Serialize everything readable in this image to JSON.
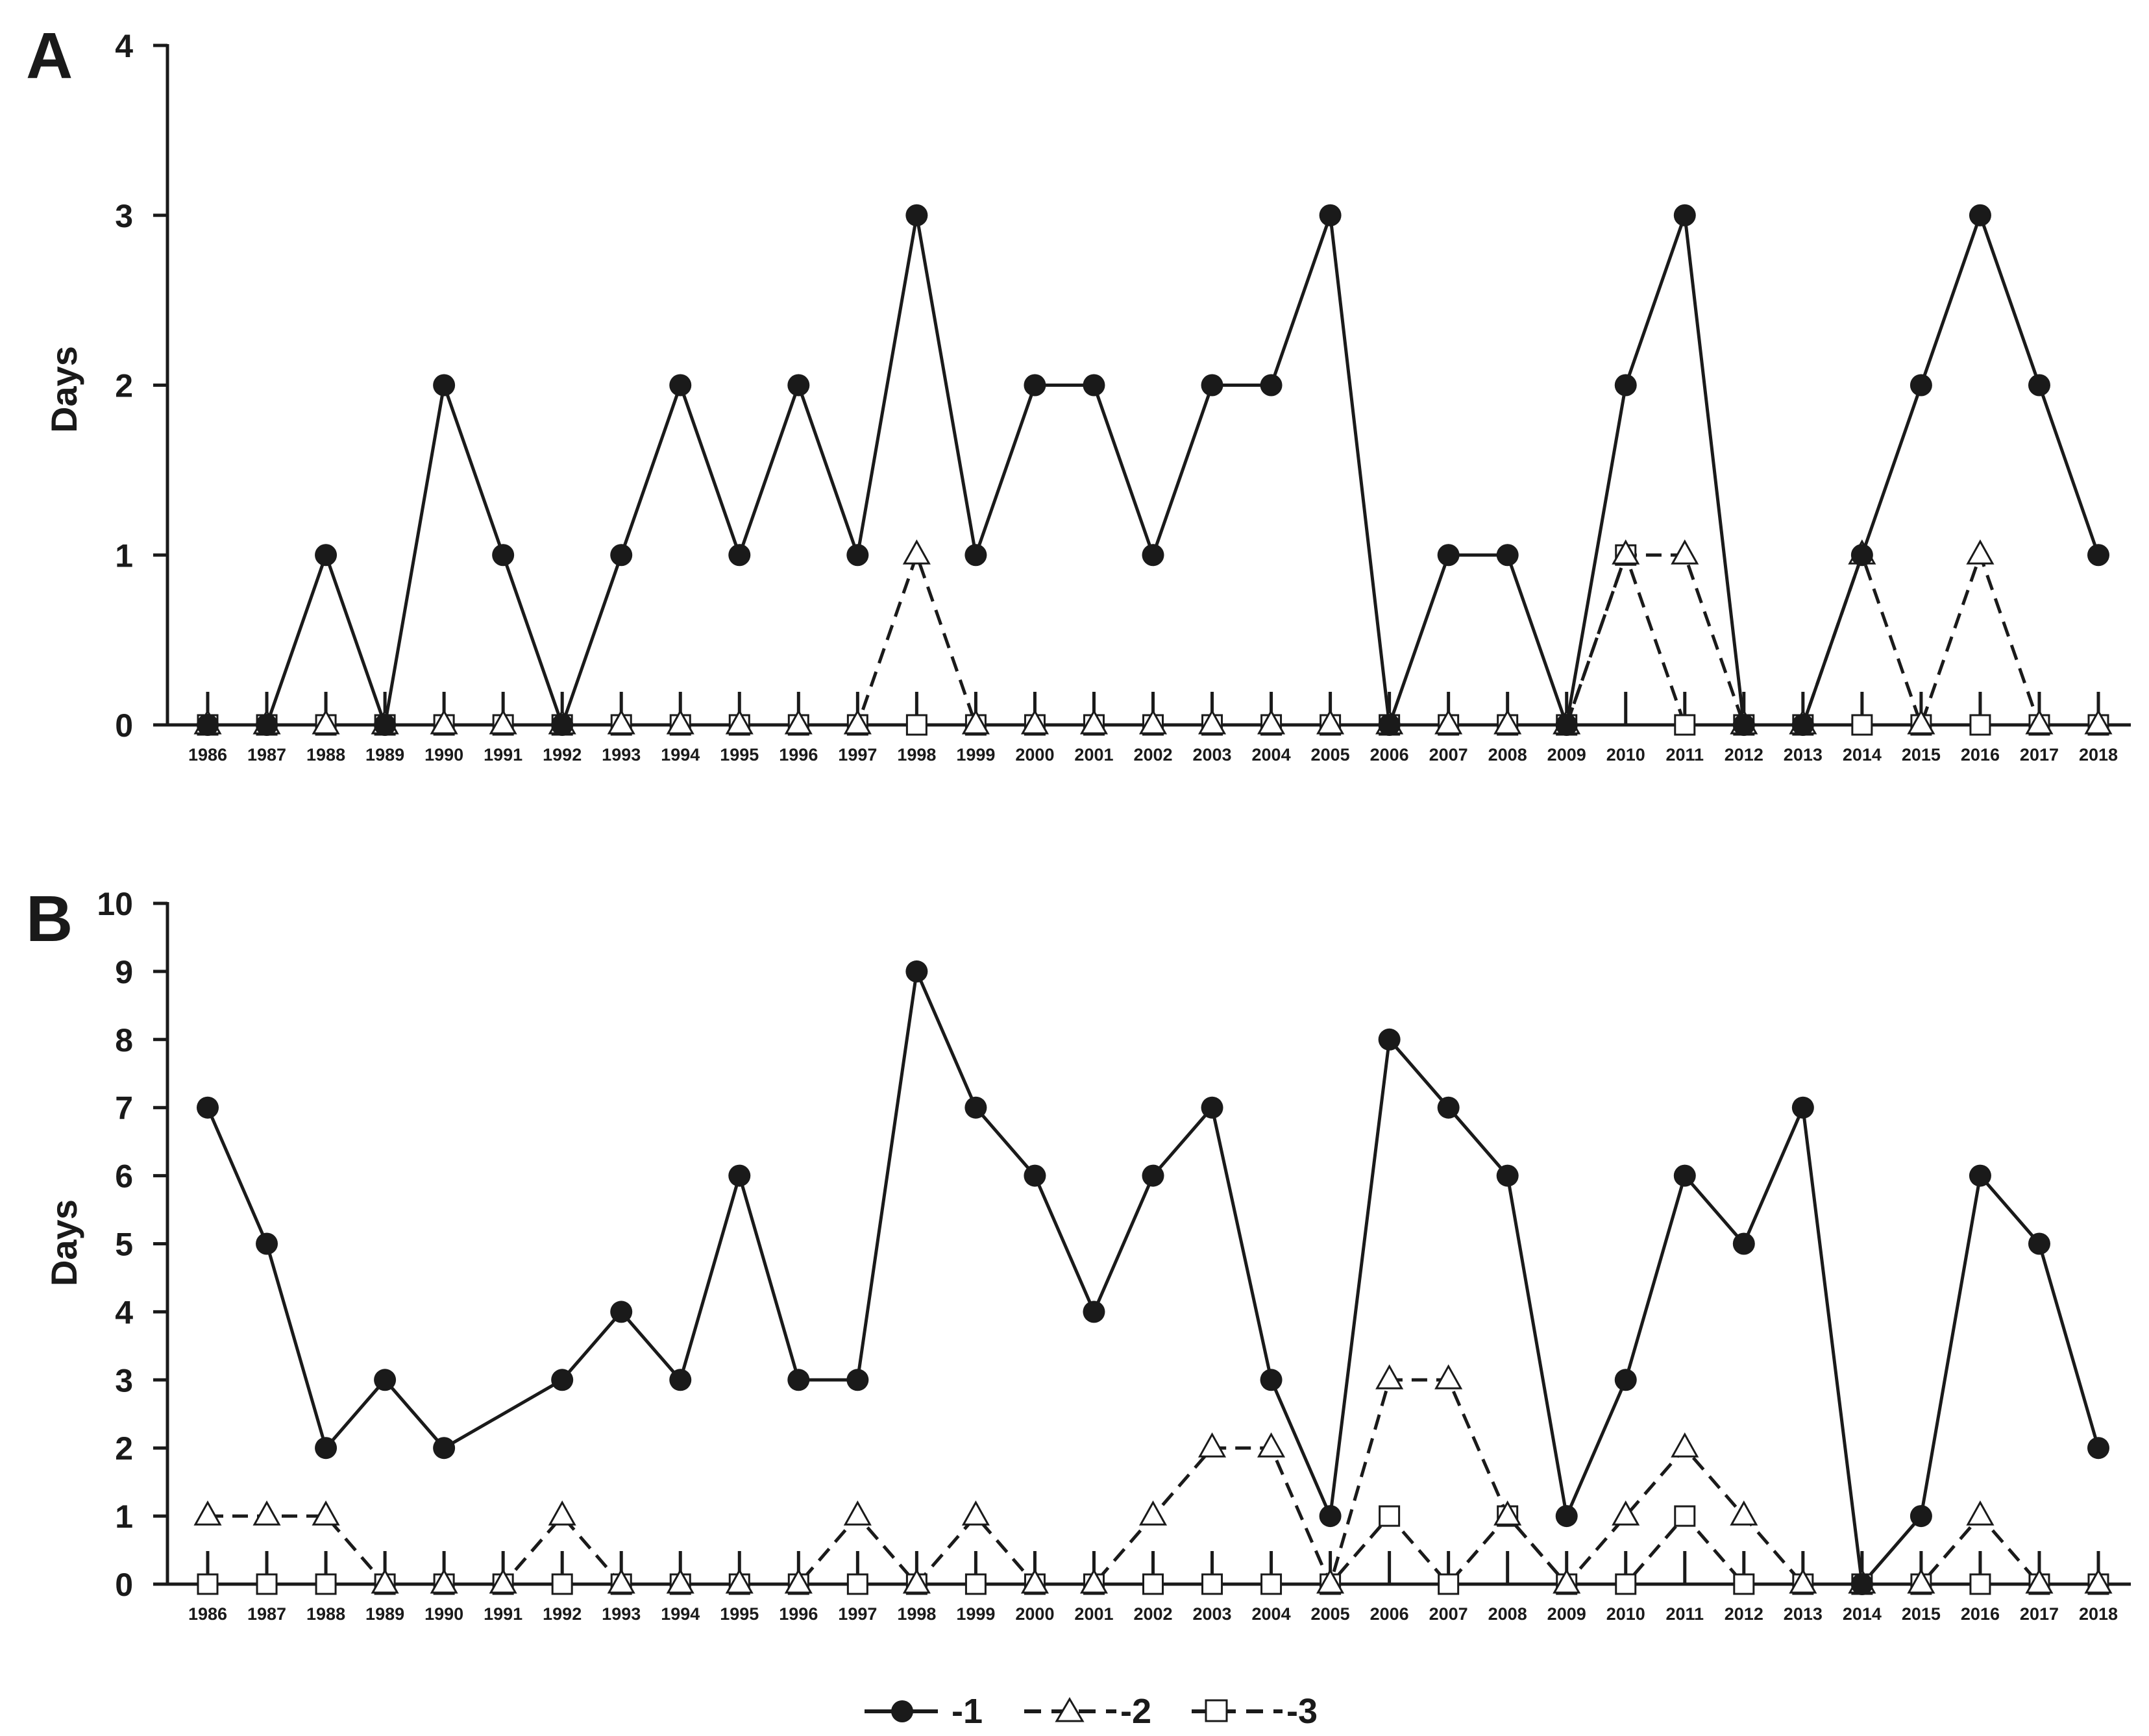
{
  "colors": {
    "ink": "#1a1a1a",
    "marker_fill_open": "#ffffff"
  },
  "chart_data": [
    {
      "panel": "A",
      "type": "line",
      "ylabel": "Days",
      "xlabel": "",
      "ylim": [
        0,
        4
      ],
      "yticks": [
        0,
        1,
        2,
        3,
        4
      ],
      "categories": [
        "1986",
        "1987",
        "1988",
        "1989",
        "1990",
        "1991",
        "1992",
        "1993",
        "1994",
        "1995",
        "1996",
        "1997",
        "1998",
        "1999",
        "2000",
        "2001",
        "2002",
        "2003",
        "2004",
        "2005",
        "2006",
        "2007",
        "2008",
        "2009",
        "2010",
        "2011",
        "2012",
        "2013",
        "2014",
        "2015",
        "2016",
        "2017",
        "2018"
      ],
      "series": [
        {
          "name": "-1",
          "marker": "filled-circle",
          "line": "solid",
          "values": [
            0,
            0,
            1,
            0,
            2,
            1,
            0,
            1,
            2,
            1,
            2,
            1,
            3,
            1,
            2,
            2,
            1,
            2,
            2,
            3,
            0,
            1,
            1,
            0,
            2,
            3,
            0,
            0,
            1,
            2,
            3,
            2,
            1
          ]
        },
        {
          "name": "-2",
          "marker": "open-triangle",
          "line": "dashed",
          "values": [
            0,
            0,
            0,
            0,
            0,
            0,
            0,
            0,
            0,
            0,
            0,
            0,
            1,
            0,
            0,
            0,
            0,
            0,
            0,
            0,
            0,
            0,
            0,
            0,
            1,
            1,
            0,
            0,
            1,
            0,
            1,
            0,
            0
          ]
        },
        {
          "name": "-3",
          "marker": "open-square",
          "line": "dashed",
          "values": [
            0,
            0,
            0,
            0,
            0,
            0,
            0,
            0,
            0,
            0,
            0,
            0,
            0,
            0,
            0,
            0,
            0,
            0,
            0,
            0,
            0,
            0,
            0,
            0,
            1,
            0,
            0,
            0,
            0,
            0,
            0,
            0,
            0
          ]
        }
      ]
    },
    {
      "panel": "B",
      "type": "line",
      "ylabel": "Days",
      "xlabel": "",
      "ylim": [
        0,
        10
      ],
      "yticks": [
        0,
        1,
        2,
        3,
        4,
        5,
        6,
        7,
        8,
        9,
        10
      ],
      "categories": [
        "1986",
        "1987",
        "1988",
        "1989",
        "1990",
        "1991",
        "1992",
        "1993",
        "1994",
        "1995",
        "1996",
        "1997",
        "1998",
        "1999",
        "2000",
        "2001",
        "2002",
        "2003",
        "2004",
        "2005",
        "2006",
        "2007",
        "2008",
        "2009",
        "2010",
        "2011",
        "2012",
        "2013",
        "2014",
        "2015",
        "2016",
        "2017",
        "2018"
      ],
      "series": [
        {
          "name": "-1",
          "marker": "filled-circle",
          "line": "solid",
          "values": [
            7,
            5,
            2,
            3,
            2,
            null,
            3,
            4,
            3,
            6,
            3,
            3,
            9,
            7,
            6,
            4,
            6,
            7,
            3,
            1,
            8,
            7,
            6,
            1,
            3,
            6,
            5,
            7,
            0,
            1,
            6,
            5,
            2
          ]
        },
        {
          "name": "-2",
          "marker": "open-triangle",
          "line": "dashed",
          "values": [
            1,
            1,
            1,
            0,
            0,
            0,
            1,
            0,
            0,
            0,
            0,
            1,
            0,
            1,
            0,
            0,
            1,
            2,
            2,
            0,
            3,
            3,
            1,
            0,
            1,
            2,
            1,
            0,
            0,
            0,
            1,
            0,
            0
          ]
        },
        {
          "name": "-3",
          "marker": "open-square",
          "line": "dashed",
          "values": [
            0,
            0,
            0,
            0,
            0,
            0,
            0,
            0,
            0,
            0,
            0,
            0,
            0,
            0,
            0,
            0,
            0,
            0,
            0,
            0,
            1,
            0,
            1,
            0,
            0,
            1,
            0,
            0,
            0,
            0,
            0,
            0,
            0
          ]
        }
      ]
    }
  ],
  "legend": {
    "placement": "bottom-center",
    "items": [
      {
        "label": "-1",
        "marker": "filled-circle",
        "line": "solid"
      },
      {
        "label": "-2",
        "marker": "open-triangle",
        "line": "dashed"
      },
      {
        "label": "-3",
        "marker": "open-square",
        "line": "dashed"
      }
    ]
  }
}
